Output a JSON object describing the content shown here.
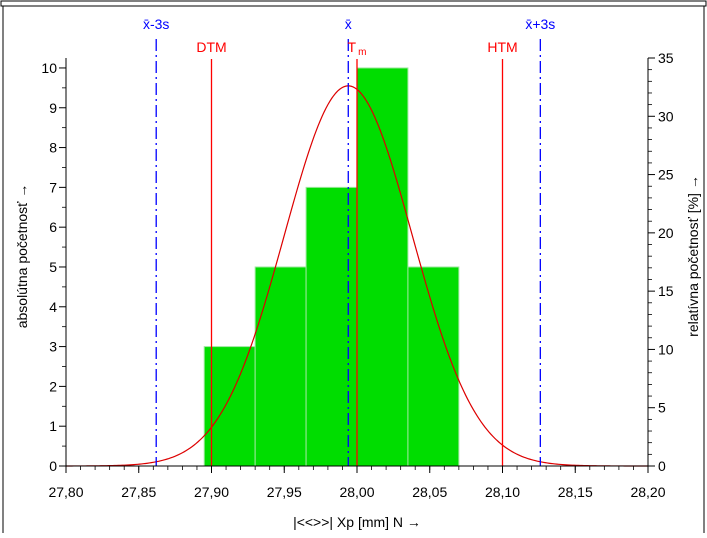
{
  "chart_data": {
    "type": "bar",
    "xlabel": "|<<>>|  Xp [mm]  N →",
    "ylabel_left": "absolútna početnosť →",
    "ylabel_right": "relatívna početnosť  [%] →",
    "xlim": [
      27.8,
      28.2
    ],
    "ylim_left": [
      0,
      10.25
    ],
    "ylim_right": [
      0,
      35
    ],
    "x_ticks": [
      27.8,
      27.85,
      27.9,
      27.95,
      28.0,
      28.05,
      28.1,
      28.15,
      28.2
    ],
    "x_tick_labels": [
      "27,80",
      "27,85",
      "27,90",
      "27,95",
      "28,00",
      "28,05",
      "28,10",
      "28,15",
      "28,20"
    ],
    "y_ticks_left": [
      0,
      1,
      2,
      3,
      4,
      5,
      6,
      7,
      8,
      9,
      10
    ],
    "y_ticks_right": [
      0,
      5,
      10,
      15,
      20,
      25,
      30,
      35
    ],
    "bars": [
      {
        "x0": 27.895,
        "x1": 27.93,
        "value": 3
      },
      {
        "x0": 27.93,
        "x1": 27.965,
        "value": 5
      },
      {
        "x0": 27.965,
        "x1": 28.0,
        "value": 7
      },
      {
        "x0": 28.0,
        "x1": 28.035,
        "value": 10
      },
      {
        "x0": 28.035,
        "x1": 28.07,
        "value": 5
      }
    ],
    "normal_curve": {
      "mean": 27.994,
      "sigma": 0.044,
      "peak": 9.55
    },
    "reference_lines": [
      {
        "label": "x̄-3s",
        "x": 27.862,
        "color": "#0000ff",
        "style": "dashdot",
        "row": "top"
      },
      {
        "label": "x̄",
        "x": 27.994,
        "color": "#0000ff",
        "style": "dashdot",
        "row": "top"
      },
      {
        "label": "x̄+3s",
        "x": 28.126,
        "color": "#0000ff",
        "style": "dashdot",
        "row": "top"
      },
      {
        "label": "DTM",
        "x": 27.9,
        "color": "#ff0000",
        "style": "solid",
        "row": "second"
      },
      {
        "label": "T",
        "sub": "m",
        "x": 28.0,
        "color": "#ff0000",
        "style": "solid",
        "row": "second"
      },
      {
        "label": "HTM",
        "x": 28.1,
        "color": "#ff0000",
        "style": "solid",
        "row": "second"
      }
    ],
    "colors": {
      "bar_fill": "#00dd00",
      "bar_edge": "#9fe89f",
      "curve": "#dd0000",
      "axis": "#000000"
    }
  }
}
